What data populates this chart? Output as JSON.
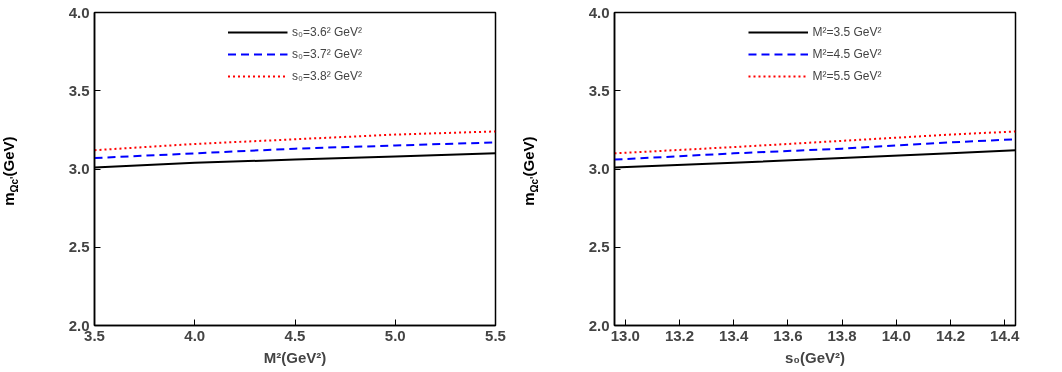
{
  "chart_data": [
    {
      "type": "line",
      "xlabel": "M²(GeV²)",
      "ylabel": "m$_{Ωc'}$(GeV)",
      "xlim": [
        3.5,
        5.5
      ],
      "ylim": [
        2.0,
        4.0
      ],
      "xticks": [
        {
          "value": 3.5,
          "label": "3.5"
        },
        {
          "value": 4.0,
          "label": "4.0"
        },
        {
          "value": 4.5,
          "label": "4.5"
        },
        {
          "value": 5.0,
          "label": "5.0"
        },
        {
          "value": 5.5,
          "label": "5.5"
        }
      ],
      "yticks": [
        {
          "value": 2.0,
          "label": "2.0"
        },
        {
          "value": 2.5,
          "label": "2.5"
        },
        {
          "value": 3.0,
          "label": "3.0"
        },
        {
          "value": 3.5,
          "label": "3.5"
        },
        {
          "value": 4.0,
          "label": "4.0"
        }
      ],
      "grid": false,
      "legend": "top",
      "x": [
        3.5,
        4.0,
        4.5,
        5.0,
        5.5
      ],
      "series": [
        {
          "name": "s₀=3.6² GeV²",
          "color": "#000000",
          "line_style": "solid",
          "values": [
            3.01,
            3.04,
            3.06,
            3.08,
            3.1
          ]
        },
        {
          "name": "s₀=3.7² GeV²",
          "color": "#0000ff",
          "line_style": "dashed",
          "values": [
            3.07,
            3.1,
            3.13,
            3.15,
            3.17
          ]
        },
        {
          "name": "s₀=3.8² GeV²",
          "color": "#ff0000",
          "line_style": "dotted",
          "values": [
            3.12,
            3.16,
            3.19,
            3.22,
            3.24
          ]
        }
      ]
    },
    {
      "type": "line",
      "xlabel": "s₀(GeV²)",
      "ylabel": "m$_{Ωc'}$(GeV)",
      "xlim": [
        12.96,
        14.44
      ],
      "ylim": [
        2.0,
        4.0
      ],
      "xticks": [
        {
          "value": 13.0,
          "label": "13.0"
        },
        {
          "value": 13.2,
          "label": "13.2"
        },
        {
          "value": 13.4,
          "label": "13.4"
        },
        {
          "value": 13.6,
          "label": "13.6"
        },
        {
          "value": 13.8,
          "label": "13.8"
        },
        {
          "value": 14.0,
          "label": "14.0"
        },
        {
          "value": 14.2,
          "label": "14.2"
        },
        {
          "value": 14.4,
          "label": "14.4"
        }
      ],
      "yticks": [
        {
          "value": 2.0,
          "label": "2.0"
        },
        {
          "value": 2.5,
          "label": "2.5"
        },
        {
          "value": 3.0,
          "label": "3.0"
        },
        {
          "value": 3.5,
          "label": "3.5"
        },
        {
          "value": 4.0,
          "label": "4.0"
        }
      ],
      "grid": false,
      "legend": "top",
      "x": [
        12.96,
        13.4,
        13.8,
        14.2,
        14.44
      ],
      "series": [
        {
          "name": "M²=3.5 GeV²",
          "color": "#000000",
          "line_style": "solid",
          "values": [
            3.01,
            3.04,
            3.07,
            3.1,
            3.12
          ]
        },
        {
          "name": "M²=4.5 GeV²",
          "color": "#0000ff",
          "line_style": "dashed",
          "values": [
            3.06,
            3.1,
            3.13,
            3.17,
            3.19
          ]
        },
        {
          "name": "M²=5.5 GeV²",
          "color": "#ff0000",
          "line_style": "dotted",
          "values": [
            3.1,
            3.14,
            3.18,
            3.22,
            3.24
          ]
        }
      ]
    }
  ]
}
